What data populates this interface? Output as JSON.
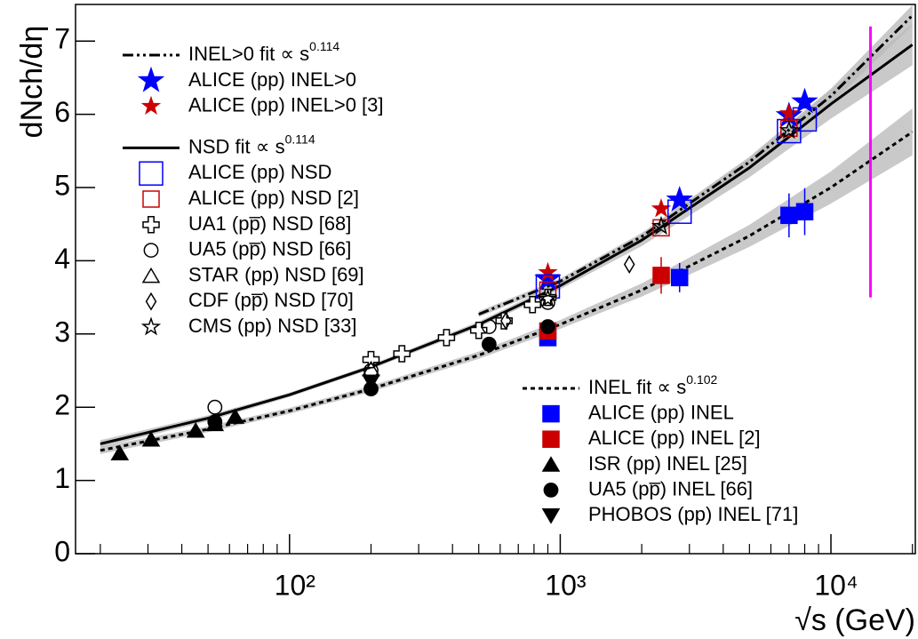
{
  "chart_data": {
    "type": "scatter",
    "ylabel": "dNch/dη",
    "xlabel": "√s (GeV)",
    "xscale": "log",
    "xlim": [
      16.2,
      20500
    ],
    "ylim": [
      0,
      7.5
    ],
    "xticks": [
      {
        "value": 100,
        "label": "10²"
      },
      {
        "value": 1000,
        "label": "10³"
      },
      {
        "value": 10000,
        "label": "10⁴"
      }
    ],
    "xminorticks": [
      20,
      30,
      40,
      50,
      60,
      70,
      80,
      90,
      200,
      300,
      400,
      500,
      600,
      700,
      800,
      900,
      2000,
      3000,
      4000,
      5000,
      6000,
      7000,
      8000,
      9000,
      20000
    ],
    "yticks": [
      0,
      1,
      2,
      3,
      4,
      5,
      6,
      7
    ],
    "vline": {
      "x": 14000,
      "ylim": [
        3.5,
        7.2
      ],
      "color": "#ff00ff"
    },
    "series": [
      {
        "name": "INEL>0 fit ∝ s",
        "exponent": "0.114",
        "kind": "fit",
        "line": "dashdot",
        "color": "#000000",
        "legend": "upper left",
        "x": [
          500,
          1000,
          2000,
          5000,
          10000,
          20000
        ],
        "values": [
          3.27,
          3.72,
          4.33,
          5.35,
          6.25,
          7.35
        ],
        "errors": [
          0.04,
          0.04,
          0.05,
          0.07,
          0.1,
          0.14
        ]
      },
      {
        "name": "ALICE (pp) INEL>0",
        "marker": "star-large",
        "color": "#0000ff",
        "legend": "upper left",
        "x": [
          900,
          2760,
          7000,
          8000
        ],
        "values": [
          3.75,
          4.83,
          5.98,
          6.17
        ]
      },
      {
        "name": "ALICE (pp) INEL>0 [3]",
        "marker": "star",
        "color": "#cc0000",
        "legend": "upper left",
        "x": [
          900,
          2360,
          7000
        ],
        "values": [
          3.84,
          4.71,
          6.01
        ]
      },
      {
        "name": "NSD fit ∝ s",
        "exponent": "0.114",
        "kind": "fit",
        "line": "solid",
        "color": "#000000",
        "legend": "upper left",
        "x": [
          20,
          50,
          100,
          200,
          500,
          1000,
          2000,
          5000,
          10000,
          20000
        ],
        "values": [
          1.5,
          1.85,
          2.17,
          2.55,
          3.13,
          3.66,
          4.28,
          5.27,
          6.14,
          6.95
        ],
        "errors": [
          0.05,
          0.04,
          0.03,
          0.03,
          0.04,
          0.05,
          0.08,
          0.13,
          0.2,
          0.28
        ]
      },
      {
        "name": "ALICE (pp) NSD",
        "marker": "square-open-large",
        "color": "#0000ff",
        "legend": "upper left",
        "x": [
          900,
          2760,
          7000,
          8000
        ],
        "values": [
          3.65,
          4.67,
          5.77,
          5.93
        ]
      },
      {
        "name": "ALICE (pp) NSD [2]",
        "marker": "square-open",
        "color": "#cc0000",
        "legend": "upper left",
        "x": [
          900,
          2360,
          7000
        ],
        "values": [
          3.6,
          4.45,
          5.81
        ]
      },
      {
        "name": "UA1 (pp̅) NSD [68]",
        "marker": "cross-open",
        "color": "#000000",
        "legend": "upper left",
        "x": [
          200,
          260,
          380,
          500,
          620,
          790,
          900
        ],
        "values": [
          2.65,
          2.73,
          2.95,
          3.05,
          3.18,
          3.4,
          3.5
        ]
      },
      {
        "name": "UA5 (pp̅) NSD [66]",
        "marker": "circle-open",
        "color": "#000000",
        "legend": "upper left",
        "x": [
          53,
          200,
          546,
          900
        ],
        "values": [
          2.0,
          2.5,
          3.1,
          3.43
        ]
      },
      {
        "name": "STAR (pp) NSD [69]",
        "marker": "triangle-open",
        "color": "#000000",
        "legend": "upper left",
        "x": [
          200
        ],
        "values": [
          2.52
        ]
      },
      {
        "name": "CDF (pp̅) NSD [70]",
        "marker": "diamond-open",
        "color": "#000000",
        "legend": "upper left",
        "x": [
          630,
          1800
        ],
        "values": [
          3.18,
          3.95
        ]
      },
      {
        "name": "CMS (pp) NSD [33]",
        "marker": "star-open",
        "color": "#000000",
        "legend": "upper left",
        "x": [
          900,
          2360,
          7000
        ],
        "values": [
          3.48,
          4.47,
          5.78
        ]
      },
      {
        "name": "INEL fit ∝ s",
        "exponent": "0.102",
        "kind": "fit",
        "line": "dotted",
        "color": "#000000",
        "legend": "lower right",
        "x": [
          20,
          50,
          100,
          200,
          500,
          1000,
          2000,
          5000,
          10000,
          20000
        ],
        "values": [
          1.41,
          1.7,
          1.95,
          2.25,
          2.71,
          3.13,
          3.6,
          4.34,
          5.0,
          5.76
        ],
        "errors": [
          0.05,
          0.04,
          0.04,
          0.04,
          0.05,
          0.06,
          0.09,
          0.15,
          0.22,
          0.32
        ]
      },
      {
        "name": "ALICE (pp) INEL",
        "marker": "square-filled",
        "color": "#0000ff",
        "legend": "lower right",
        "x": [
          900,
          2760,
          7000,
          8000
        ],
        "values": [
          2.95,
          3.77,
          4.62,
          4.67
        ],
        "errors": [
          0.08,
          0.2,
          0.3,
          0.32
        ]
      },
      {
        "name": "ALICE (pp) INEL [2]",
        "marker": "square-filled",
        "color": "#cc0000",
        "legend": "lower right",
        "x": [
          900,
          2360
        ],
        "values": [
          3.04,
          3.8
        ],
        "errors": [
          0.08,
          0.25
        ]
      },
      {
        "name": "ISR (pp) INEL [25]",
        "marker": "triangle-filled",
        "color": "#000000",
        "legend": "lower right",
        "x": [
          23.6,
          30.8,
          45,
          53,
          63
        ],
        "values": [
          1.37,
          1.56,
          1.68,
          1.77,
          1.87
        ]
      },
      {
        "name": "UA5 (pp̅) INEL [66]",
        "marker": "circle-filled",
        "color": "#000000",
        "legend": "lower right",
        "x": [
          53,
          200,
          546,
          900
        ],
        "values": [
          1.8,
          2.25,
          2.86,
          3.1
        ]
      },
      {
        "name": "PHOBOS (pp) INEL [71]",
        "marker": "triangle-down-filled",
        "color": "#000000",
        "legend": "lower right",
        "x": [
          200
        ],
        "values": [
          2.35
        ]
      }
    ]
  }
}
